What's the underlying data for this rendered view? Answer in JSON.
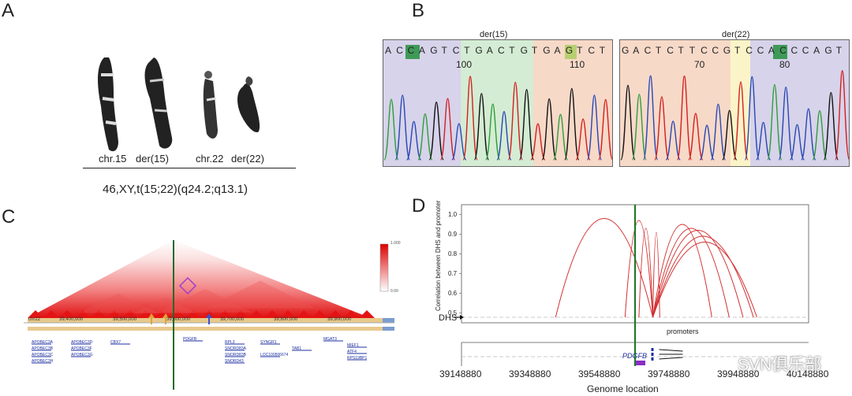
{
  "panels": {
    "a": "A",
    "b": "B",
    "c": "C",
    "d": "D"
  },
  "karyotype": {
    "labels": [
      "chr.15",
      "der(15)",
      "chr.22",
      "der(22)"
    ],
    "formula": "46,XY,t(15;22)(q24.2;q13.1)"
  },
  "sequencing": {
    "left": {
      "title": "der(15)",
      "bases": [
        "A",
        "C",
        "C",
        "A",
        "G",
        "T",
        "C",
        "T",
        "G",
        "A",
        "C",
        "T",
        "G",
        "T",
        "G",
        "A",
        "G",
        "T",
        "C",
        "T"
      ],
      "num1": "100",
      "num2": "110"
    },
    "right": {
      "title": "der(22)",
      "bases": [
        "G",
        "A",
        "C",
        "T",
        "C",
        "T",
        "T",
        "C",
        "C",
        "G",
        "T",
        "C",
        "C",
        "A",
        "C",
        "C",
        "C",
        "A",
        "G",
        "T"
      ],
      "num1": "70",
      "num2": "80"
    }
  },
  "hic": {
    "scale_top": "1.000",
    "scale_bottom": "0.00",
    "chrom": "chr22",
    "coords": [
      "39,400,000",
      "39,500,000",
      "39,600,000",
      "39,700,000",
      "39,800,000",
      "39,900,000"
    ],
    "genes": [
      "APOBEC3A",
      "APOBEC3B",
      "APOBEC3C",
      "APOBEC3D",
      "APOBEC3F",
      "APOBEC3G",
      "APOBEC3H",
      "CBX7",
      "PDGFB",
      "RPL3",
      "SYNGR1",
      "TAB1",
      "MGAT3",
      "MIEF1",
      "ATF4",
      "RPS19BP1",
      "SNORD83A",
      "SNORD83B",
      "SNORD43",
      "LOC100506674"
    ]
  },
  "chart_data": {
    "type": "line",
    "title": "",
    "ylabel": "Correlation between DHS and promoter",
    "xlabel": "Genome location",
    "xticks": [
      "39148880",
      "39348880",
      "39548880",
      "39748880",
      "39948880",
      "40148880"
    ],
    "yticks": [
      "0.5",
      "0.6",
      "0.7",
      "0.8",
      "0.9",
      "1.0"
    ],
    "xlim": [
      39148880,
      40148880
    ],
    "ylim": [
      0.45,
      1.05
    ],
    "annotations": {
      "dhs": "DHS",
      "promoters": "promoters",
      "gene": "PDGFB"
    },
    "arcs": [
      {
        "x1": 39420000,
        "x2": 39700000,
        "peak": 0.98
      },
      {
        "x1": 39620000,
        "x2": 39700000,
        "peak": 0.97
      },
      {
        "x1": 39660000,
        "x2": 39700000,
        "peak": 0.93
      },
      {
        "x1": 39700000,
        "x2": 39870000,
        "peak": 0.95
      },
      {
        "x1": 39700000,
        "x2": 39920000,
        "peak": 0.93
      },
      {
        "x1": 39700000,
        "x2": 39960000,
        "peak": 0.92
      },
      {
        "x1": 39700000,
        "x2": 39990000,
        "peak": 0.89
      },
      {
        "x1": 39700000,
        "x2": 40000000,
        "peak": 0.86
      },
      {
        "x1": 39700000,
        "x2": 39720000,
        "peak": 0.91
      }
    ]
  },
  "watermark": "SVN俱乐部"
}
